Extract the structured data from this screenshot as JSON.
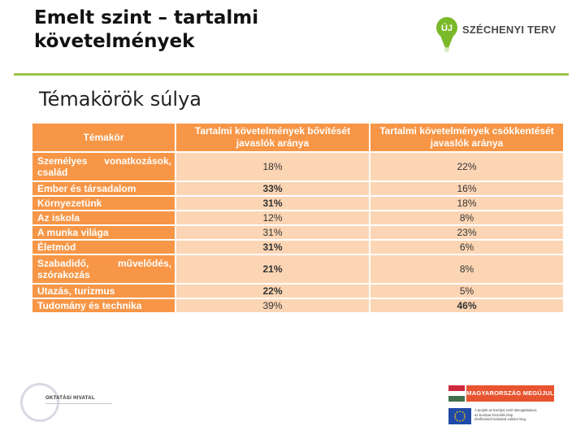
{
  "header": {
    "title_line1": "Emelt szint – tartalmi",
    "title_line2": "követelmények",
    "subtitle": "Témakörök súlya"
  },
  "logo": {
    "pin_letter": "ÚJ",
    "text": "SZÉCHENYI TERV",
    "color": "#7ab929"
  },
  "table": {
    "headers": [
      "Témakör",
      "Tartalmi követelmények bővítését javaslók aránya",
      "Tartalmi követelmények csökkentését javaslók aránya"
    ],
    "rows": [
      {
        "topic": "Személyes vonatkozások, család",
        "increase": "18%",
        "decrease": "22%"
      },
      {
        "topic": "Ember és társadalom",
        "increase": "33%",
        "decrease": "16%"
      },
      {
        "topic": "Környezetünk",
        "increase": "31%",
        "decrease": "18%"
      },
      {
        "topic": "Az iskola",
        "increase": "12%",
        "decrease": "8%"
      },
      {
        "topic": "A munka világa",
        "increase": "31%",
        "decrease": "23%"
      },
      {
        "topic": "Életmód",
        "increase": "31%",
        "decrease": "6%"
      },
      {
        "topic": "Szabadidő, művelődés, szórakozás",
        "increase": "21%",
        "decrease": "8%"
      },
      {
        "topic": "Utazás, turizmus",
        "increase": "22%",
        "decrease": "5%"
      },
      {
        "topic": "Tudomány és technika",
        "increase": "39%",
        "decrease": "46%"
      }
    ]
  },
  "footer": {
    "left_logo_text": "OKTATÁSI HIVATAL",
    "right_banner": "MAGYARORSZÁG MEGÚJUL",
    "eu_text_lines": [
      "A projekt az Európai Unió támogatásával,",
      "az Európai Szociális Alap",
      "társfinanszírozásával valósul meg."
    ]
  }
}
